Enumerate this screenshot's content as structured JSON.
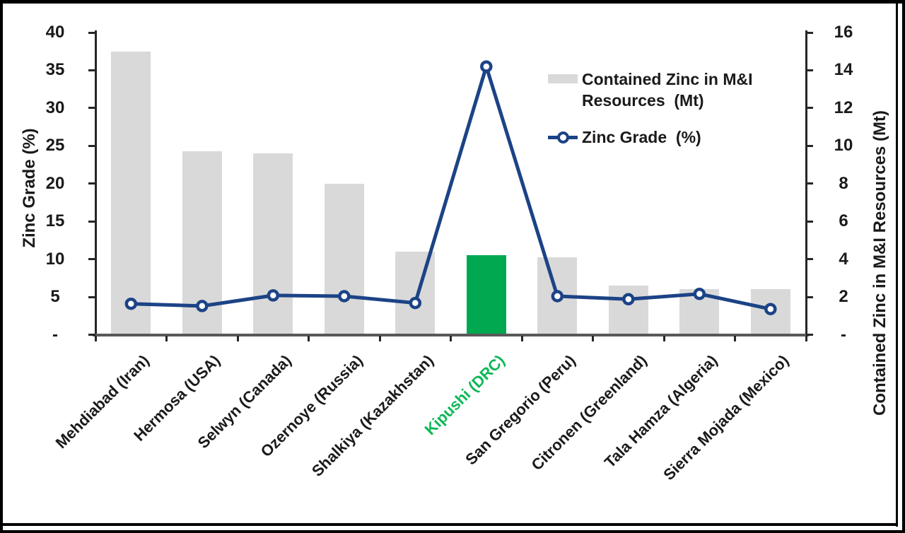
{
  "legend": {
    "bar_label_lines": [
      "Contained Zinc in M&I",
      "Resources  (Mt)"
    ],
    "line_label": "Zinc Grade  (%)"
  },
  "chart_data": {
    "type": "combo-bar-line",
    "title": "",
    "categories": [
      "Mehdiabad (Iran)",
      "Hermosa (USA)",
      "Selwyn (Canada)",
      "Ozernoye (Russia)",
      "Shalkiya (Kazakhstan)",
      "Kipushi (DRC)",
      "San Gregorio (Peru)",
      "Citronen (Greenland)",
      "Tala Hamza (Algeria)",
      "Sierra Mojada (Mexico)"
    ],
    "highlight_category": "Kipushi (DRC)",
    "highlight_index": 5,
    "series": [
      {
        "name": "Contained Zinc in M&I Resources (Mt)",
        "type": "bar",
        "axis": "right",
        "values": [
          15.0,
          9.7,
          9.6,
          8.0,
          4.4,
          4.2,
          4.1,
          2.6,
          2.4,
          2.4
        ]
      },
      {
        "name": "Zinc Grade (%)",
        "type": "line",
        "axis": "left",
        "values": [
          4.1,
          3.8,
          5.2,
          5.1,
          4.2,
          35.5,
          5.1,
          4.7,
          5.4,
          3.4
        ]
      }
    ],
    "left_axis": {
      "title": "Zinc Grade (%)",
      "min": 0,
      "max": 40,
      "step": 5,
      "zero_label": "-"
    },
    "right_axis": {
      "title": "Contained Zinc in M&I Resources (Mt)",
      "min": 0,
      "max": 16,
      "step": 2,
      "zero_label": "-"
    },
    "legend_position": "inside-top-right",
    "grid": false,
    "colors": {
      "bar": "#D9D9D9",
      "bar_highlight": "#00A850",
      "line": "#1C4386",
      "highlight_label": "#0CB857",
      "text": "#1A1A1A"
    }
  }
}
